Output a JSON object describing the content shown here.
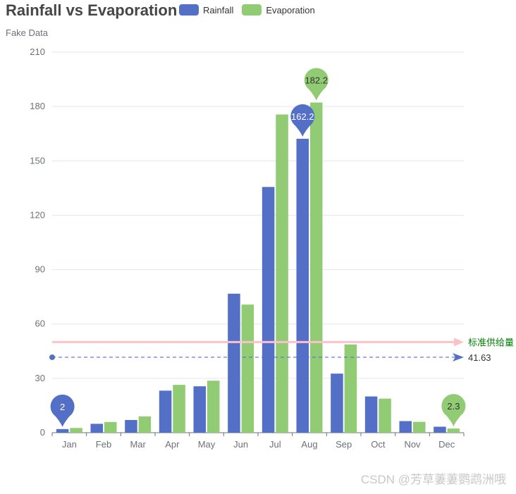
{
  "chart_data": {
    "type": "bar",
    "title": "Rainfall vs Evaporation",
    "subtitle": "Fake Data",
    "categories": [
      "Jan",
      "Feb",
      "Mar",
      "Apr",
      "May",
      "Jun",
      "Jul",
      "Aug",
      "Sep",
      "Oct",
      "Nov",
      "Dec"
    ],
    "series": [
      {
        "name": "Rainfall",
        "color": "#5470c6",
        "values": [
          2.0,
          4.9,
          7.0,
          23.2,
          25.6,
          76.7,
          135.6,
          162.2,
          32.6,
          20.0,
          6.4,
          3.3
        ]
      },
      {
        "name": "Evaporation",
        "color": "#91cc75",
        "values": [
          2.6,
          5.9,
          9.0,
          26.4,
          28.7,
          70.7,
          175.6,
          182.2,
          48.7,
          18.8,
          6.0,
          2.3
        ]
      }
    ],
    "ylim": [
      0,
      210
    ],
    "yticks": [
      0,
      30,
      60,
      90,
      120,
      150,
      180,
      210
    ],
    "grid": true,
    "legend_position": "top",
    "mark_points": [
      {
        "series": 0,
        "category": "Jan",
        "value": 2,
        "label": "2"
      },
      {
        "series": 0,
        "category": "Aug",
        "value": 162.2,
        "label": "162.2"
      },
      {
        "series": 1,
        "category": "Aug",
        "value": 182.2,
        "label": "182.2"
      },
      {
        "series": 1,
        "category": "Dec",
        "value": 2.3,
        "label": "2.3"
      }
    ],
    "mark_lines": [
      {
        "value": 50,
        "label": "标准供给量",
        "color": "#ffc0cb",
        "label_color": "#008000",
        "style": "solid"
      },
      {
        "value": 41.63,
        "label": "41.63",
        "color": "#5470c6",
        "label_color": "#333333",
        "style": "dashed"
      }
    ]
  },
  "watermark": "CSDN @芳草萋萋鹦鹉洲哦"
}
